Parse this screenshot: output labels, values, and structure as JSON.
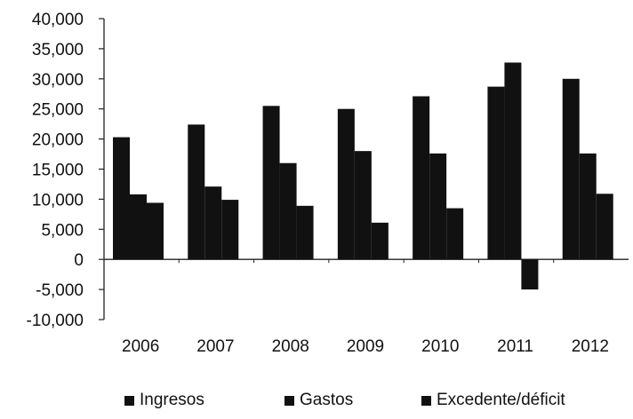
{
  "chart_data": {
    "type": "bar",
    "categories": [
      "2006",
      "2007",
      "2008",
      "2009",
      "2010",
      "2011",
      "2012"
    ],
    "series": [
      {
        "name": "Ingresos",
        "values": [
          20300,
          22400,
          25500,
          25000,
          27100,
          28700,
          30000
        ]
      },
      {
        "name": "Gastos",
        "values": [
          10800,
          12100,
          16000,
          18000,
          17600,
          32700,
          17600
        ]
      },
      {
        "name": "Excedente/déficit",
        "values": [
          9400,
          9900,
          8900,
          6100,
          8500,
          -5000,
          10900
        ]
      }
    ],
    "ylim": [
      -10000,
      40000
    ],
    "yticks": [
      "40,000",
      "35,000",
      "30,000",
      "25,000",
      "20,000",
      "15,000",
      "10,000",
      "5,000",
      "0",
      "-5,000",
      "-10,000"
    ],
    "ytick_values": [
      40000,
      35000,
      30000,
      25000,
      20000,
      15000,
      10000,
      5000,
      0,
      -5000,
      -10000
    ],
    "legend_position": "bottom",
    "bar_color": "#111111"
  }
}
